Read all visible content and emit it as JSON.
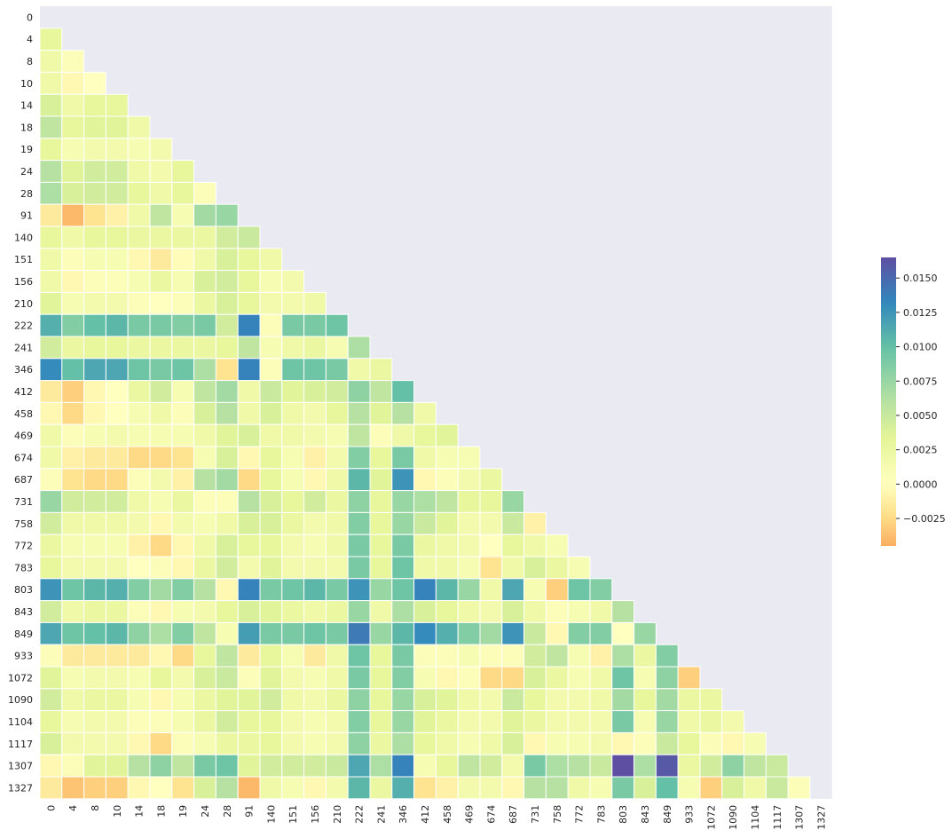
{
  "chart_data": {
    "type": "heatmap",
    "mask": "upper-triangle",
    "labels": [
      "0",
      "4",
      "8",
      "10",
      "14",
      "18",
      "19",
      "24",
      "28",
      "91",
      "140",
      "151",
      "156",
      "210",
      "222",
      "241",
      "346",
      "412",
      "458",
      "469",
      "674",
      "687",
      "731",
      "758",
      "772",
      "783",
      "803",
      "843",
      "849",
      "933",
      "1072",
      "1090",
      "1104",
      "1117",
      "1307",
      "1327"
    ],
    "colormap": "Spectral",
    "vmin": -0.0045,
    "vmax": 0.0165,
    "colorbar_ticks": [
      -0.0025,
      0.0,
      0.0025,
      0.005,
      0.0075,
      0.01,
      0.0125,
      0.015
    ],
    "colorbar_tick_labels": [
      "−0.0025",
      "0.0000",
      "0.0025",
      "0.0050",
      "0.0075",
      "0.0100",
      "0.0125",
      "0.0150"
    ],
    "background_color": "#eaeaf2",
    "grid_line_color": "#ffffff",
    "rows": [
      [],
      [
        0.003
      ],
      [
        0.002,
        0.0005
      ],
      [
        0.002,
        -0.0005,
        0.0
      ],
      [
        0.004,
        0.002,
        0.003,
        0.003
      ],
      [
        0.0055,
        0.003,
        0.0035,
        0.0035,
        0.002
      ],
      [
        0.003,
        0.001,
        0.0015,
        0.0015,
        0.001,
        0.0015
      ],
      [
        0.006,
        0.0035,
        0.0045,
        0.0045,
        0.002,
        0.0015,
        0.003
      ],
      [
        0.0065,
        0.004,
        0.0045,
        0.0045,
        0.003,
        0.002,
        0.003,
        0.0005
      ],
      [
        -0.0015,
        -0.004,
        -0.002,
        -0.001,
        0.002,
        0.0055,
        0.001,
        0.007,
        0.0075
      ],
      [
        0.003,
        0.002,
        0.003,
        0.003,
        0.0025,
        0.0025,
        0.0025,
        0.0025,
        0.0045,
        0.005
      ],
      [
        0.002,
        0.0005,
        0.001,
        0.001,
        -0.0005,
        -0.0015,
        -0.0002,
        0.002,
        0.004,
        0.003,
        0.002
      ],
      [
        0.002,
        -0.0005,
        0.0005,
        0.0005,
        0.001,
        0.0025,
        0.001,
        0.004,
        0.0045,
        0.003,
        0.001,
        0.0015
      ],
      [
        0.0035,
        0.001,
        0.0015,
        0.0015,
        0.0005,
        0.0,
        0.0005,
        0.0025,
        0.004,
        0.003,
        0.0015,
        0.0015,
        0.002
      ],
      [
        0.011,
        0.0085,
        0.01,
        0.0105,
        0.009,
        0.009,
        0.0085,
        0.009,
        0.0045,
        0.0135,
        0.0005,
        0.009,
        0.009,
        0.0095
      ],
      [
        0.0045,
        0.0025,
        0.003,
        0.003,
        0.0025,
        0.0025,
        0.0025,
        0.0025,
        0.003,
        0.0055,
        0.001,
        0.002,
        0.0025,
        0.001,
        0.0065
      ],
      [
        0.013,
        0.01,
        0.0115,
        0.0115,
        0.0095,
        0.009,
        0.0095,
        0.0065,
        -0.002,
        0.0135,
        0.0005,
        0.0095,
        0.0095,
        0.009,
        0.002,
        0.0025
      ],
      [
        -0.0015,
        -0.003,
        -0.0005,
        0.0,
        0.0025,
        0.0045,
        0.001,
        0.0055,
        0.007,
        0.002,
        0.005,
        0.0035,
        0.004,
        0.0045,
        0.008,
        0.0055,
        0.01
      ],
      [
        -0.0005,
        -0.0025,
        -0.0005,
        0.0,
        0.001,
        0.002,
        0.0005,
        0.004,
        0.006,
        0.002,
        0.004,
        0.002,
        0.0015,
        0.003,
        0.006,
        0.0035,
        0.006,
        0.002
      ],
      [
        0.002,
        0.0005,
        0.001,
        0.0015,
        0.001,
        0.001,
        0.001,
        0.002,
        0.0035,
        0.004,
        0.002,
        0.002,
        0.0015,
        0.001,
        0.0055,
        0.0005,
        0.002,
        0.003,
        0.0035
      ],
      [
        0.002,
        -0.001,
        -0.0015,
        -0.0015,
        -0.0025,
        -0.0025,
        -0.002,
        0.001,
        0.004,
        -0.0005,
        0.003,
        0.001,
        -0.001,
        0.0015,
        0.0085,
        0.003,
        0.009,
        0.002,
        0.001,
        0.001
      ],
      [
        0.0005,
        -0.002,
        -0.0025,
        -0.0025,
        0.0005,
        0.0015,
        -0.001,
        0.006,
        0.007,
        -0.0025,
        0.003,
        0.001,
        -0.0005,
        0.002,
        0.0105,
        0.0035,
        0.0125,
        -0.0005,
        0.0005,
        0.0015,
        0.0025
      ],
      [
        0.0075,
        0.0045,
        0.0045,
        0.0045,
        0.002,
        0.001,
        0.0025,
        0.0005,
        0.0005,
        0.006,
        0.004,
        0.003,
        0.0045,
        0.0025,
        0.008,
        0.003,
        0.0075,
        0.0065,
        0.0055,
        0.003,
        0.003,
        0.0075
      ],
      [
        0.0045,
        0.002,
        0.002,
        0.002,
        0.0015,
        -0.0005,
        0.0015,
        0.001,
        0.002,
        0.004,
        0.004,
        0.0025,
        0.0015,
        0.002,
        0.0085,
        0.003,
        0.0075,
        0.005,
        0.0035,
        0.0015,
        0.0015,
        0.005,
        -0.001
      ],
      [
        0.0025,
        0.001,
        0.001,
        0.001,
        -0.001,
        -0.0025,
        -0.0005,
        0.002,
        0.004,
        0.003,
        0.003,
        0.0015,
        0.001,
        0.002,
        0.009,
        0.003,
        0.009,
        0.0025,
        0.002,
        0.0015,
        0.0,
        0.003,
        0.002,
        0.001
      ],
      [
        0.003,
        0.0015,
        0.0015,
        0.0015,
        0.0,
        0.0005,
        -0.0005,
        0.0025,
        0.0045,
        0.0015,
        0.0035,
        0.0015,
        0.0015,
        0.0015,
        0.009,
        0.003,
        0.0095,
        0.002,
        0.002,
        0.001,
        -0.002,
        0.002,
        0.004,
        0.0025,
        0.001
      ],
      [
        0.0125,
        0.0095,
        0.0105,
        0.011,
        0.0085,
        0.007,
        0.0085,
        0.006,
        -0.0005,
        0.0135,
        0.009,
        0.0095,
        0.0105,
        0.009,
        0.0125,
        0.0075,
        0.0095,
        0.0135,
        0.0105,
        0.0075,
        0.002,
        0.0115,
        0.001,
        -0.003,
        0.0095,
        0.0085
      ],
      [
        0.0045,
        0.002,
        0.0025,
        0.0025,
        0.0005,
        -0.0005,
        0.001,
        0.0015,
        0.003,
        0.004,
        0.0035,
        0.0025,
        0.002,
        0.0025,
        0.0075,
        0.002,
        0.0065,
        0.004,
        0.003,
        0.002,
        0.0015,
        0.004,
        0.002,
        0.0005,
        0.001,
        0.002,
        0.006
      ],
      [
        0.0115,
        0.0095,
        0.01,
        0.0105,
        0.008,
        0.0065,
        0.0085,
        0.0055,
        0.001,
        0.012,
        0.009,
        0.009,
        0.0095,
        0.009,
        0.014,
        0.0075,
        0.0105,
        0.013,
        0.011,
        0.0085,
        0.007,
        0.0125,
        0.005,
        -0.0005,
        0.0085,
        0.0085,
        0.0,
        0.0075
      ],
      [
        0.0005,
        -0.0015,
        -0.0015,
        -0.0015,
        -0.0015,
        -0.0005,
        -0.0025,
        0.003,
        0.0055,
        -0.0015,
        0.003,
        0.001,
        -0.0015,
        0.002,
        0.0095,
        0.003,
        0.009,
        0.0005,
        0.0005,
        0.001,
        0.0005,
        0.0005,
        0.0045,
        0.0055,
        0.001,
        -0.001,
        0.0065,
        0.0025,
        0.0085
      ],
      [
        0.0035,
        0.001,
        0.0015,
        0.0015,
        0.001,
        0.003,
        0.0015,
        0.004,
        0.005,
        0.0005,
        0.0035,
        0.0015,
        0.001,
        0.002,
        0.009,
        0.003,
        0.0085,
        0.001,
        -0.0005,
        0.0005,
        -0.0025,
        -0.0025,
        0.004,
        0.0025,
        0.001,
        0.002,
        0.0095,
        0.001,
        0.008,
        -0.003
      ],
      [
        0.0045,
        0.002,
        0.0025,
        0.0025,
        0.001,
        -0.0005,
        0.001,
        0.0025,
        0.0035,
        0.0035,
        0.0045,
        0.002,
        0.0015,
        0.0025,
        0.008,
        0.003,
        0.0075,
        0.004,
        0.0035,
        0.002,
        0.0015,
        0.005,
        0.003,
        0.0015,
        0.0015,
        0.002,
        0.007,
        0.003,
        0.007,
        0.0025,
        0.0025
      ],
      [
        0.003,
        0.001,
        0.0015,
        0.0015,
        0.0005,
        0.0005,
        0.001,
        0.0025,
        0.0045,
        0.003,
        0.003,
        0.0015,
        0.001,
        0.0015,
        0.0085,
        0.003,
        0.0075,
        0.0035,
        0.0025,
        0.0015,
        0.0015,
        0.0035,
        0.0025,
        0.0015,
        0.0015,
        0.0015,
        0.009,
        0.001,
        0.0075,
        0.002,
        0.0025,
        0.0015
      ],
      [
        0.004,
        0.0015,
        0.0015,
        0.0015,
        -0.0005,
        -0.0025,
        0.0005,
        0.001,
        0.0025,
        0.0025,
        0.003,
        0.0015,
        0.001,
        0.0015,
        0.008,
        0.0025,
        0.0065,
        0.003,
        0.002,
        0.001,
        0.002,
        0.004,
        -0.0005,
        0.001,
        0.001,
        0.0015,
        -0.0005,
        0.0005,
        0.005,
        0.003,
        0.0005,
        -0.0005,
        0.001
      ],
      [
        -0.0005,
        0.0005,
        0.0035,
        0.0035,
        0.006,
        0.008,
        0.0055,
        0.009,
        0.0095,
        0.0035,
        0.0045,
        0.0045,
        0.0045,
        0.005,
        0.0115,
        0.0065,
        0.0135,
        0.001,
        0.003,
        0.0055,
        0.0045,
        0.0015,
        0.009,
        0.0065,
        0.006,
        0.005,
        0.0165,
        0.0065,
        0.016,
        0.0025,
        0.0045,
        0.008,
        0.0055,
        0.005
      ],
      [
        -0.0015,
        -0.0035,
        -0.003,
        -0.003,
        -0.0005,
        0.0,
        -0.002,
        0.004,
        0.006,
        -0.004,
        0.002,
        0.001,
        -0.0005,
        0.0015,
        0.0105,
        0.0025,
        0.011,
        -0.002,
        -0.001,
        0.0015,
        0.0015,
        -0.0005,
        0.006,
        0.006,
        0.002,
        0.001,
        0.009,
        0.004,
        0.01,
        0.001,
        -0.003,
        0.004,
        0.002,
        0.005,
        0.0005
      ]
    ]
  }
}
